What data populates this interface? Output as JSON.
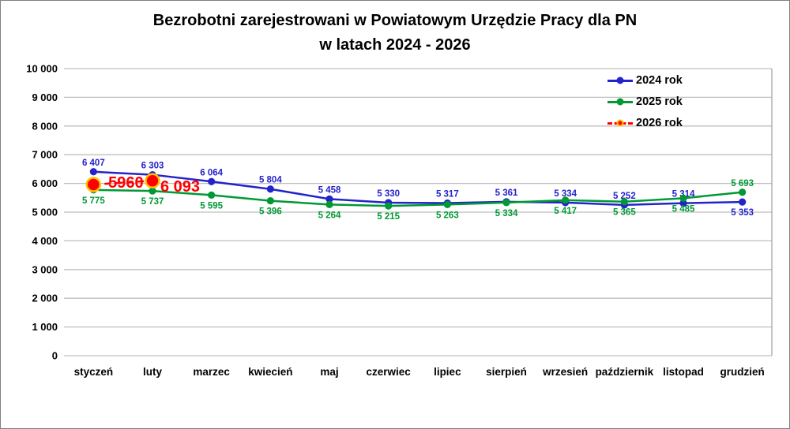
{
  "chart_data": {
    "type": "line",
    "title_lines": [
      "Bezrobotni zarejestrowani w Powiatowym Urzędzie Pracy dla PN",
      "w latach 2024 - 2026"
    ],
    "categories": [
      "styczeń",
      "luty",
      "marzec",
      "kwiecień",
      "maj",
      "czerwiec",
      "lipiec",
      "sierpień",
      "wrzesień",
      "październik",
      "listopad",
      "grudzień"
    ],
    "series": [
      {
        "name": "2024 rok",
        "color": "#2323CC",
        "line_style": "solid",
        "values": [
          6407,
          6303,
          6064,
          5804,
          5458,
          5330,
          5317,
          5361,
          5334,
          5252,
          5314,
          5353
        ],
        "labels": [
          "6 407",
          "6 303",
          "6 064",
          "5 804",
          "5 458",
          "5 330",
          "5 317",
          "5 361",
          "5 334",
          "5 252",
          "5 314",
          "5 353"
        ],
        "label_side": [
          "above",
          "above",
          "above",
          "above",
          "above",
          "above",
          "above",
          "above",
          "above",
          "above",
          "above",
          "below"
        ]
      },
      {
        "name": "2025 rok",
        "color": "#009933",
        "line_style": "solid",
        "values": [
          5775,
          5737,
          5595,
          5396,
          5264,
          5215,
          5263,
          5334,
          5417,
          5365,
          5485,
          5693
        ],
        "labels": [
          "5 775",
          "5 737",
          "5 595",
          "5 396",
          "5 264",
          "5 215",
          "5 263",
          "5 334",
          "5 417",
          "5 365",
          "5 485",
          "5 693"
        ],
        "label_side": [
          "below",
          "below",
          "below",
          "below",
          "below",
          "below",
          "below",
          "below",
          "below",
          "below",
          "below",
          "above"
        ]
      },
      {
        "name": "2026 rok",
        "color": "#FF0000",
        "marker_edge_color": "#FFC000",
        "line_style": "dashed",
        "big_labels": true,
        "values": [
          5960,
          6093,
          null,
          null,
          null,
          null,
          null,
          null,
          null,
          null,
          null,
          null
        ],
        "labels": [
          "5960",
          "6 093"
        ],
        "label_offsets": [
          {
            "dx": 41,
            "dy": 4
          },
          {
            "dx": 35,
            "dy": 14
          }
        ]
      }
    ],
    "xlabel": "",
    "ylabel": "",
    "ylim": [
      0,
      10000
    ],
    "y_tick_values": [
      0,
      1000,
      2000,
      3000,
      4000,
      5000,
      6000,
      7000,
      8000,
      9000,
      10000
    ],
    "y_tick_labels": [
      "0",
      "1 000",
      "2 000",
      "3 000",
      "4 000",
      "5 000",
      "6 000",
      "7 000",
      "8 000",
      "9 000",
      "10 000"
    ],
    "grid": true,
    "legend_position": "top-right",
    "colors": {
      "grid": "#BFBFBF",
      "plot_border": "#A6A6A6",
      "axis_text": "#000000"
    }
  }
}
